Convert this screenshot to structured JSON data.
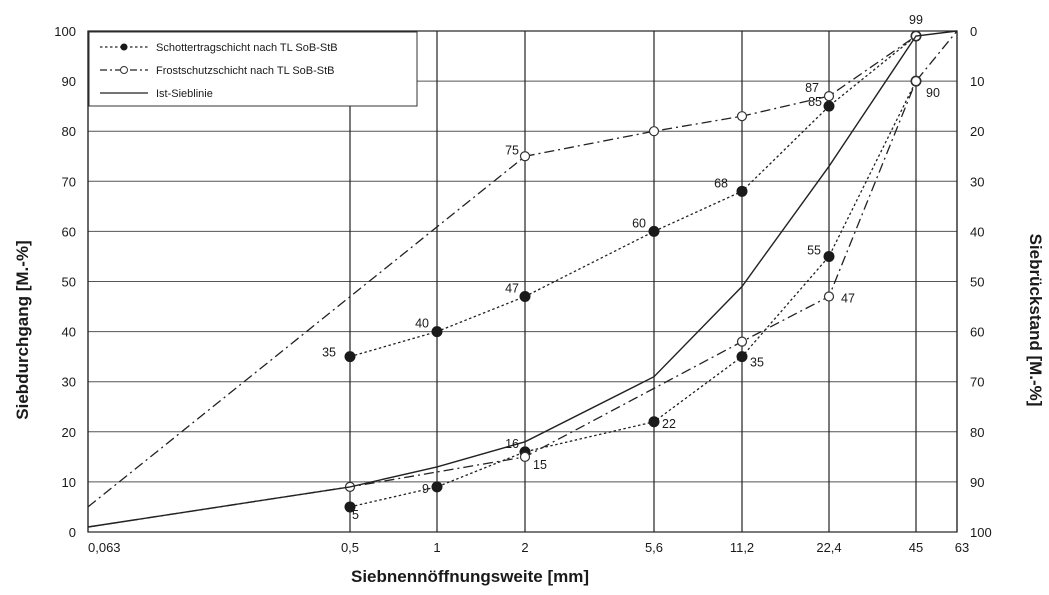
{
  "chart_data": {
    "type": "line",
    "xlabel": "Siebnennöffnungsweite [mm]",
    "ylabel": "Siebdurchgang [M.-%]",
    "y2label": "Siebrückstand [M.-%]",
    "x_scale": "log",
    "ylim": [
      0,
      100
    ],
    "y2lim": [
      100,
      0
    ],
    "x_ticks": [
      "0,063",
      "0,5",
      "1",
      "2",
      "5,6",
      "11,2",
      "22,4",
      "45",
      "63"
    ],
    "x_tick_values": [
      0.063,
      0.5,
      1,
      2,
      5.6,
      11.2,
      22.4,
      45,
      63
    ],
    "y_ticks": [
      "0",
      "10",
      "20",
      "30",
      "40",
      "50",
      "60",
      "70",
      "80",
      "90",
      "100"
    ],
    "y2_ticks": [
      "100",
      "90",
      "80",
      "70",
      "60",
      "50",
      "40",
      "30",
      "20",
      "10",
      "0"
    ],
    "grid": true,
    "legend_position": "top-left",
    "legend": [
      {
        "label": "Schottertragschicht nach TL SoB-StB"
      },
      {
        "label": "Frostschutzschicht nach TL SoB-StB"
      },
      {
        "label": "Ist-Sieblinie"
      }
    ],
    "series": [
      {
        "group": "Schottertragschicht",
        "marker": "filled",
        "style": "dotted",
        "x": [
          0.5,
          1,
          2,
          5.6,
          11.2,
          22.4,
          45
        ],
        "y": [
          35,
          40,
          47,
          60,
          68,
          85,
          99
        ],
        "labels": [
          "35",
          "40",
          "47",
          "60",
          "68",
          "85",
          ""
        ]
      },
      {
        "group": "Schottertragschicht",
        "marker": "filled",
        "style": "dotted",
        "x": [
          0.5,
          1,
          2,
          5.6,
          11.2,
          22.4,
          45
        ],
        "y": [
          5,
          9,
          16,
          22,
          35,
          55,
          90
        ],
        "labels": [
          "5",
          "9",
          "16",
          "22",
          "35",
          "55",
          ""
        ]
      },
      {
        "group": "Frostschutzschicht",
        "marker": "open",
        "style": "dashdot",
        "x": [
          0.063,
          2,
          5.6,
          11.2,
          22.4,
          45
        ],
        "y": [
          5,
          75,
          80,
          83,
          87,
          99
        ],
        "labels": [
          "",
          "75",
          "",
          "",
          "87",
          "99"
        ]
      },
      {
        "group": "Frostschutzschicht",
        "marker": "open",
        "style": "dashdot",
        "x": [
          0.063,
          0.5,
          2,
          11.2,
          22.4,
          45,
          63
        ],
        "y": [
          1,
          9,
          15,
          38,
          47,
          90,
          100
        ],
        "labels": [
          "",
          "",
          "15",
          "",
          "47",
          "90",
          ""
        ]
      },
      {
        "group": "Ist-Sieblinie",
        "marker": "none",
        "style": "solid",
        "x": [
          0.063,
          0.5,
          1,
          2,
          5.6,
          11.2,
          22.4,
          45,
          63
        ],
        "y": [
          1,
          9,
          13,
          18,
          31,
          49,
          73,
          99,
          100
        ],
        "labels": []
      }
    ]
  }
}
